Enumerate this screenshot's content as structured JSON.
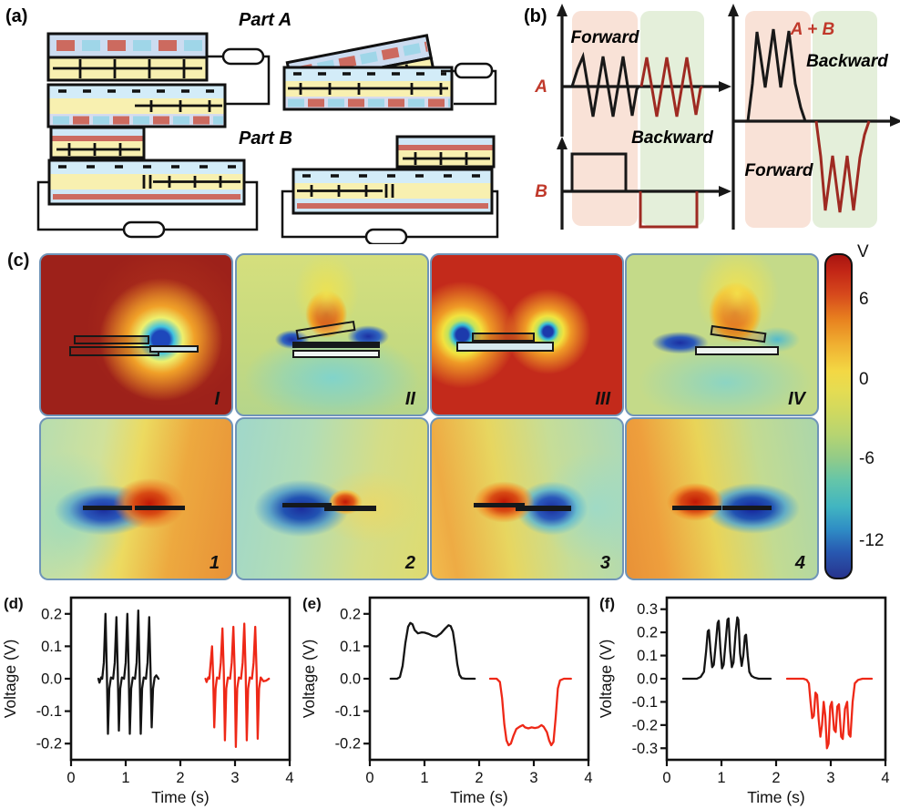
{
  "figure": {
    "panel_a": {
      "label": "(a)",
      "part_a": "Part A",
      "part_b": "Part B"
    },
    "panel_b": {
      "label": "(b)",
      "left": {
        "a_label": "A",
        "b_label": "B",
        "forward": "Forward",
        "backward": "Backward"
      },
      "right": {
        "sum_label": "A + B",
        "backward": "Backward",
        "forward": "Forward"
      }
    },
    "panel_c": {
      "label": "(c)",
      "cells": [
        "I",
        "II",
        "III",
        "IV",
        "1",
        "2",
        "3",
        "4"
      ],
      "colorbar": {
        "title": "V",
        "ticks": [
          "6",
          "0",
          "-6",
          "-12"
        ]
      }
    }
  },
  "colors": {
    "schematic_yellow": "#f8f0b0",
    "schematic_blue": "#d3ecf8",
    "schematic_lavender": "#d6dbee",
    "charge_red": "#cc6a5f",
    "charge_cyan": "#9fd6e8",
    "band_pink": "#f9e2d7",
    "band_green": "#e4efda",
    "wave_black": "#181818",
    "wave_dark_red": "#9e2a22",
    "label_red": "#c0392b",
    "trace_black": "#141414",
    "trace_red": "#ee2817",
    "heatmap_border": "#6f94b8"
  },
  "chart_data": [
    {
      "id": "d",
      "type": "line",
      "label": "(d)",
      "xlabel": "Time (s)",
      "ylabel": "Voltage (V)",
      "xlim": [
        0,
        4
      ],
      "ylim": [
        -0.25,
        0.25
      ],
      "xticks": [
        {
          "v": 0,
          "t": "0"
        },
        {
          "v": 1,
          "t": "1"
        },
        {
          "v": 2,
          "t": "2"
        },
        {
          "v": 3,
          "t": "3"
        },
        {
          "v": 4,
          "t": "4"
        }
      ],
      "yticks": [
        {
          "v": 0.2,
          "t": "0.2"
        },
        {
          "v": 0.1,
          "t": "0.1"
        },
        {
          "v": 0,
          "t": "0.0"
        },
        {
          "v": -0.1,
          "t": "-0.1"
        },
        {
          "v": -0.2,
          "t": "-0.2"
        }
      ],
      "series": [
        {
          "name": "forward",
          "color": "#141414",
          "points": [
            [
              0.5,
              0
            ],
            [
              0.52,
              -0.012
            ],
            [
              0.55,
              0.004
            ],
            [
              0.57,
              0
            ],
            [
              0.6,
              0.05
            ],
            [
              0.63,
              0.2
            ],
            [
              0.655,
              0.02
            ],
            [
              0.675,
              -0.17
            ],
            [
              0.7,
              -0.03
            ],
            [
              0.73,
              0.004
            ],
            [
              0.77,
              0
            ],
            [
              0.8,
              0.05
            ],
            [
              0.83,
              0.19
            ],
            [
              0.855,
              0.02
            ],
            [
              0.875,
              -0.16
            ],
            [
              0.9,
              -0.03
            ],
            [
              0.93,
              0.004
            ],
            [
              0.97,
              0
            ],
            [
              1.0,
              0.05
            ],
            [
              1.03,
              0.2
            ],
            [
              1.055,
              0.02
            ],
            [
              1.075,
              -0.17
            ],
            [
              1.1,
              -0.03
            ],
            [
              1.13,
              0.004
            ],
            [
              1.17,
              0
            ],
            [
              1.2,
              0.05
            ],
            [
              1.23,
              0.21
            ],
            [
              1.255,
              0.02
            ],
            [
              1.275,
              -0.17
            ],
            [
              1.3,
              -0.03
            ],
            [
              1.33,
              0.004
            ],
            [
              1.37,
              0
            ],
            [
              1.4,
              0.05
            ],
            [
              1.43,
              0.19
            ],
            [
              1.455,
              0.02
            ],
            [
              1.475,
              -0.15
            ],
            [
              1.5,
              -0.03
            ],
            [
              1.53,
              0.004
            ],
            [
              1.56,
              0.01
            ],
            [
              1.6,
              0
            ]
          ]
        },
        {
          "name": "backward",
          "color": "#ee2817",
          "points": [
            [
              2.46,
              0
            ],
            [
              2.48,
              -0.01
            ],
            [
              2.51,
              0.004
            ],
            [
              2.53,
              0
            ],
            [
              2.55,
              0.04
            ],
            [
              2.58,
              0.1
            ],
            [
              2.6,
              0.01
            ],
            [
              2.62,
              -0.15
            ],
            [
              2.645,
              -0.03
            ],
            [
              2.67,
              0.004
            ],
            [
              2.71,
              0
            ],
            [
              2.74,
              0.05
            ],
            [
              2.77,
              0.155
            ],
            [
              2.795,
              0.02
            ],
            [
              2.815,
              -0.19
            ],
            [
              2.84,
              -0.03
            ],
            [
              2.87,
              0.004
            ],
            [
              2.91,
              0
            ],
            [
              2.94,
              0.05
            ],
            [
              2.97,
              0.16
            ],
            [
              2.995,
              0.02
            ],
            [
              3.015,
              -0.21
            ],
            [
              3.04,
              -0.03
            ],
            [
              3.07,
              0.004
            ],
            [
              3.11,
              0
            ],
            [
              3.14,
              0.05
            ],
            [
              3.17,
              0.17
            ],
            [
              3.195,
              0.02
            ],
            [
              3.215,
              -0.19
            ],
            [
              3.24,
              -0.03
            ],
            [
              3.27,
              0.004
            ],
            [
              3.31,
              0
            ],
            [
              3.34,
              0.05
            ],
            [
              3.37,
              0.16
            ],
            [
              3.395,
              0.02
            ],
            [
              3.415,
              -0.185
            ],
            [
              3.44,
              -0.03
            ],
            [
              3.47,
              0.004
            ],
            [
              3.52,
              -0.008
            ],
            [
              3.57,
              -0.006
            ],
            [
              3.62,
              0
            ]
          ]
        }
      ]
    },
    {
      "id": "e",
      "type": "line",
      "label": "(e)",
      "xlabel": "Time (s)",
      "ylabel": "Voltage (V)",
      "xlim": [
        0,
        4
      ],
      "ylim": [
        -0.25,
        0.25
      ],
      "xticks": [
        {
          "v": 0,
          "t": "0"
        },
        {
          "v": 1,
          "t": "1"
        },
        {
          "v": 2,
          "t": "2"
        },
        {
          "v": 3,
          "t": "3"
        },
        {
          "v": 4,
          "t": "4"
        }
      ],
      "yticks": [
        {
          "v": 0.2,
          "t": "0.2"
        },
        {
          "v": 0.1,
          "t": "0.1"
        },
        {
          "v": 0,
          "t": "0.0"
        },
        {
          "v": -0.1,
          "t": "-0.1"
        },
        {
          "v": -0.2,
          "t": "-0.2"
        }
      ],
      "series": [
        {
          "name": "forward",
          "color": "#141414",
          "points": [
            [
              0.38,
              0
            ],
            [
              0.5,
              0
            ],
            [
              0.55,
              0.005
            ],
            [
              0.6,
              0.04
            ],
            [
              0.65,
              0.11
            ],
            [
              0.7,
              0.16
            ],
            [
              0.74,
              0.172
            ],
            [
              0.78,
              0.168
            ],
            [
              0.82,
              0.15
            ],
            [
              0.88,
              0.14
            ],
            [
              0.95,
              0.143
            ],
            [
              1.0,
              0.142
            ],
            [
              1.08,
              0.138
            ],
            [
              1.15,
              0.132
            ],
            [
              1.22,
              0.13
            ],
            [
              1.3,
              0.14
            ],
            [
              1.38,
              0.155
            ],
            [
              1.44,
              0.165
            ],
            [
              1.48,
              0.162
            ],
            [
              1.52,
              0.145
            ],
            [
              1.56,
              0.1
            ],
            [
              1.6,
              0.045
            ],
            [
              1.64,
              0.012
            ],
            [
              1.68,
              0.002
            ],
            [
              1.75,
              0
            ],
            [
              1.92,
              0
            ]
          ]
        },
        {
          "name": "backward",
          "color": "#ee2817",
          "points": [
            [
              2.2,
              0
            ],
            [
              2.32,
              0
            ],
            [
              2.38,
              -0.01
            ],
            [
              2.42,
              -0.06
            ],
            [
              2.46,
              -0.14
            ],
            [
              2.5,
              -0.19
            ],
            [
              2.54,
              -0.205
            ],
            [
              2.58,
              -0.2
            ],
            [
              2.63,
              -0.175
            ],
            [
              2.68,
              -0.155
            ],
            [
              2.74,
              -0.148
            ],
            [
              2.8,
              -0.143
            ],
            [
              2.84,
              -0.15
            ],
            [
              2.9,
              -0.153
            ],
            [
              2.96,
              -0.15
            ],
            [
              3.02,
              -0.152
            ],
            [
              3.08,
              -0.15
            ],
            [
              3.14,
              -0.143
            ],
            [
              3.18,
              -0.148
            ],
            [
              3.24,
              -0.165
            ],
            [
              3.28,
              -0.19
            ],
            [
              3.32,
              -0.205
            ],
            [
              3.36,
              -0.195
            ],
            [
              3.4,
              -0.12
            ],
            [
              3.44,
              -0.03
            ],
            [
              3.48,
              -0.005
            ],
            [
              3.55,
              0
            ],
            [
              3.68,
              0
            ]
          ]
        }
      ]
    },
    {
      "id": "f",
      "type": "line",
      "label": "(f)",
      "xlabel": "Time (s)",
      "ylabel": "Voltage (V)",
      "xlim": [
        0,
        4
      ],
      "ylim": [
        -0.35,
        0.35
      ],
      "xticks": [
        {
          "v": 0,
          "t": "0"
        },
        {
          "v": 1,
          "t": "1"
        },
        {
          "v": 2,
          "t": "2"
        },
        {
          "v": 3,
          "t": "3"
        },
        {
          "v": 4,
          "t": "4"
        }
      ],
      "yticks": [
        {
          "v": 0.3,
          "t": "0.3"
        },
        {
          "v": 0.2,
          "t": "0.2"
        },
        {
          "v": 0.1,
          "t": "0.1"
        },
        {
          "v": 0,
          "t": "0.0"
        },
        {
          "v": -0.1,
          "t": "-0.1"
        },
        {
          "v": -0.2,
          "t": "-0.2"
        },
        {
          "v": -0.3,
          "t": "-0.3"
        }
      ],
      "series": [
        {
          "name": "forward",
          "color": "#141414",
          "points": [
            [
              0.3,
              0
            ],
            [
              0.55,
              0
            ],
            [
              0.62,
              0.008
            ],
            [
              0.68,
              0.03
            ],
            [
              0.72,
              0.12
            ],
            [
              0.75,
              0.205
            ],
            [
              0.77,
              0.21
            ],
            [
              0.8,
              0.12
            ],
            [
              0.83,
              0.05
            ],
            [
              0.86,
              0.06
            ],
            [
              0.9,
              0.16
            ],
            [
              0.93,
              0.24
            ],
            [
              0.95,
              0.25
            ],
            [
              0.98,
              0.13
            ],
            [
              1.01,
              0.045
            ],
            [
              1.04,
              0.06
            ],
            [
              1.08,
              0.17
            ],
            [
              1.11,
              0.255
            ],
            [
              1.13,
              0.26
            ],
            [
              1.16,
              0.12
            ],
            [
              1.19,
              0.05
            ],
            [
              1.22,
              0.07
            ],
            [
              1.26,
              0.2
            ],
            [
              1.29,
              0.265
            ],
            [
              1.31,
              0.255
            ],
            [
              1.34,
              0.11
            ],
            [
              1.37,
              0.055
            ],
            [
              1.4,
              0.1
            ],
            [
              1.43,
              0.185
            ],
            [
              1.45,
              0.19
            ],
            [
              1.48,
              0.1
            ],
            [
              1.51,
              0.03
            ],
            [
              1.55,
              0.012
            ],
            [
              1.6,
              0.005
            ],
            [
              1.68,
              0
            ],
            [
              1.9,
              0
            ]
          ]
        },
        {
          "name": "backward",
          "color": "#ee2817",
          "points": [
            [
              2.2,
              0
            ],
            [
              2.5,
              0
            ],
            [
              2.56,
              -0.005
            ],
            [
              2.6,
              -0.02
            ],
            [
              2.63,
              -0.1
            ],
            [
              2.66,
              -0.17
            ],
            [
              2.69,
              -0.16
            ],
            [
              2.72,
              -0.06
            ],
            [
              2.75,
              -0.07
            ],
            [
              2.78,
              -0.18
            ],
            [
              2.81,
              -0.25
            ],
            [
              2.84,
              -0.2
            ],
            [
              2.87,
              -0.1
            ],
            [
              2.9,
              -0.16
            ],
            [
              2.93,
              -0.3
            ],
            [
              2.96,
              -0.28
            ],
            [
              2.99,
              -0.12
            ],
            [
              3.02,
              -0.1
            ],
            [
              3.06,
              -0.22
            ],
            [
              3.09,
              -0.23
            ],
            [
              3.12,
              -0.12
            ],
            [
              3.15,
              -0.11
            ],
            [
              3.19,
              -0.25
            ],
            [
              3.22,
              -0.26
            ],
            [
              3.26,
              -0.13
            ],
            [
              3.3,
              -0.1
            ],
            [
              3.33,
              -0.24
            ],
            [
              3.36,
              -0.25
            ],
            [
              3.4,
              -0.1
            ],
            [
              3.44,
              -0.02
            ],
            [
              3.5,
              -0.005
            ],
            [
              3.58,
              0
            ],
            [
              3.75,
              0
            ]
          ]
        }
      ]
    }
  ]
}
